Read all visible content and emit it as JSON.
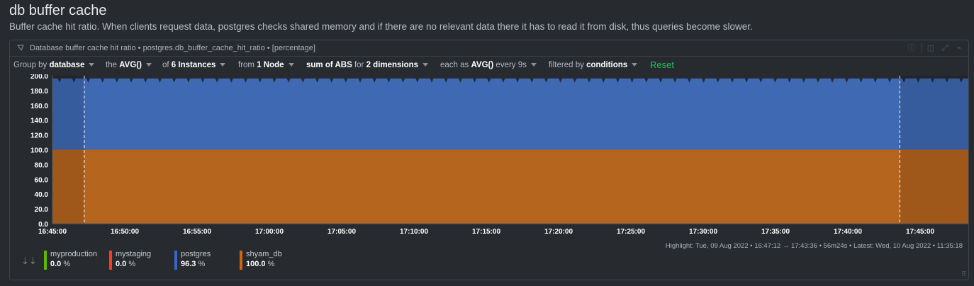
{
  "section": {
    "title": "db buffer cache",
    "description": "Buffer cache hit ratio. When clients request data, postgres checks shared memory and if there are no relevant data there it has to read it from disk, thus queries become slower."
  },
  "panel": {
    "title": "Database buffer cache hit ratio • postgres.db_buffer_cache_hit_ratio • [percentage]"
  },
  "toolbar": {
    "group_by_label": "Group by",
    "group_by_value": "database",
    "the_label": "the",
    "the_value": "AVG()",
    "of_label": "of",
    "of_value": "6 Instances",
    "from_label": "from",
    "from_value": "1 Node",
    "sum_value": "sum of ABS",
    "for_label": "for",
    "for_value": "2 dimensions",
    "each_as_label": "each as",
    "each_as_value": "AVG()",
    "every_label": "every 9s",
    "filtered_label": "filtered by",
    "filtered_value": "conditions",
    "reset_label": "Reset"
  },
  "chart_data": {
    "type": "area",
    "stacked": true,
    "y_ticks": [
      "0.0",
      "20.0",
      "40.0",
      "60.0",
      "80.0",
      "100.0",
      "120.0",
      "140.0",
      "160.0",
      "180.0",
      "200.0"
    ],
    "ylim": [
      0,
      200
    ],
    "x_ticks": [
      "16:45:00",
      "16:50:00",
      "16:55:00",
      "17:00:00",
      "17:05:00",
      "17:10:00",
      "17:15:00",
      "17:20:00",
      "17:25:00",
      "17:30:00",
      "17:35:00",
      "17:40:00",
      "17:45:00"
    ],
    "x_start": "16:45:00",
    "x_end": "17:48:20",
    "highlight_range": [
      "16:47:12",
      "17:43:36"
    ],
    "series": [
      {
        "name": "shyam_db",
        "color": "#b5651d",
        "value": 100.0
      },
      {
        "name": "postgres",
        "color": "#3f69b3",
        "value": 96.3
      }
    ]
  },
  "legend": {
    "items": [
      {
        "name": "myproduction",
        "value": "0.0",
        "unit": "%",
        "color": "#5fb800"
      },
      {
        "name": "mystaging",
        "value": "0.0",
        "unit": "%",
        "color": "#ff3a22"
      },
      {
        "name": "postgres",
        "value": "96.3",
        "unit": "%",
        "color": "#3a65c4"
      },
      {
        "name": "shyam_db",
        "value": "100.0",
        "unit": "%",
        "color": "#d0650f"
      }
    ],
    "highlight_text": "Highlight:  Tue, 09 Aug 2022 • 16:47:12 → 17:43:36 • 56m24s  •  Latest:  Wed, 10 Aug 2022 • 11:35:18"
  }
}
